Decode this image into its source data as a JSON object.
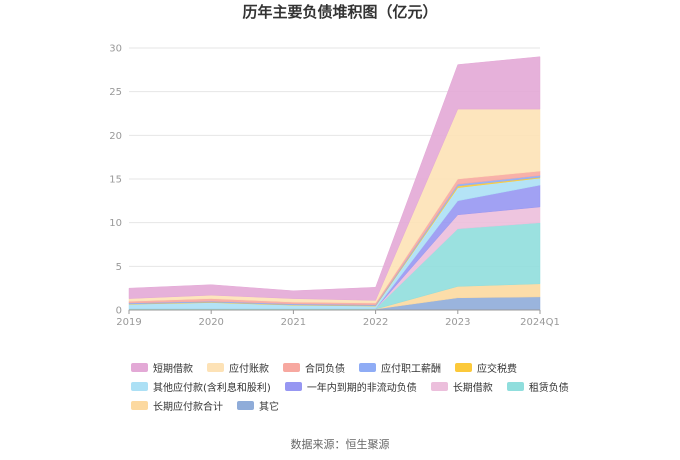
{
  "source_prefix": "数据来源：",
  "source_name": "恒生聚源",
  "chart_data": {
    "type": "area",
    "stacked": true,
    "title": "历年主要负债堆积图（亿元）",
    "x": [
      "2019",
      "2020",
      "2021",
      "2022",
      "2023",
      "2024Q1"
    ],
    "ylim": [
      0,
      30
    ],
    "yticks": [
      0,
      5,
      10,
      15,
      20,
      25,
      30
    ],
    "grid": true,
    "legend_position": "bottom",
    "series": [
      {
        "name": "其它",
        "color": "#8facd9",
        "values": [
          0.1,
          0.1,
          0.1,
          0.1,
          1.4,
          1.5
        ]
      },
      {
        "name": "长期应付款合计",
        "color": "#fcd9a0",
        "values": [
          0,
          0,
          0,
          0,
          1.3,
          1.5
        ]
      },
      {
        "name": "租赁负债",
        "color": "#90dedd",
        "values": [
          0.05,
          0.05,
          0.05,
          0.05,
          6.6,
          7.0
        ]
      },
      {
        "name": "长期借款",
        "color": "#ecbfdc",
        "values": [
          0,
          0,
          0,
          0,
          1.6,
          1.8
        ]
      },
      {
        "name": "一年内到期的非流动负债",
        "color": "#9797f2",
        "values": [
          0,
          0,
          0,
          0,
          1.6,
          2.5
        ]
      },
      {
        "name": "其他应付款(含利息和股利)",
        "color": "#ace0f5",
        "values": [
          0.5,
          0.7,
          0.4,
          0.3,
          1.5,
          0.8
        ]
      },
      {
        "name": "应交税费",
        "color": "#fcc93a",
        "values": [
          0.05,
          0.05,
          0.05,
          0.05,
          0.2,
          0.1
        ]
      },
      {
        "name": "应付职工薪酬",
        "color": "#8facf5",
        "values": [
          0.1,
          0.1,
          0.1,
          0.1,
          0.2,
          0.2
        ]
      },
      {
        "name": "合同负债",
        "color": "#f7a8a0",
        "values": [
          0.2,
          0.3,
          0.2,
          0.2,
          0.6,
          0.5
        ]
      },
      {
        "name": "应付账款",
        "color": "#fde2b6",
        "values": [
          0.3,
          0.4,
          0.4,
          0.3,
          8.0,
          7.1
        ]
      },
      {
        "name": "短期借款",
        "color": "#e3a9d6",
        "values": [
          1.2,
          1.2,
          0.9,
          1.5,
          5.1,
          6.0
        ]
      }
    ],
    "legend_rows": [
      [
        "短期借款",
        "应付账款",
        "合同负债",
        "应付职工薪酬",
        "应交税费"
      ],
      [
        "其他应付款(含利息和股利)",
        "一年内到期的非流动负债",
        "长期借款",
        "租赁负债"
      ],
      [
        "长期应付款合计",
        "其它"
      ]
    ]
  }
}
